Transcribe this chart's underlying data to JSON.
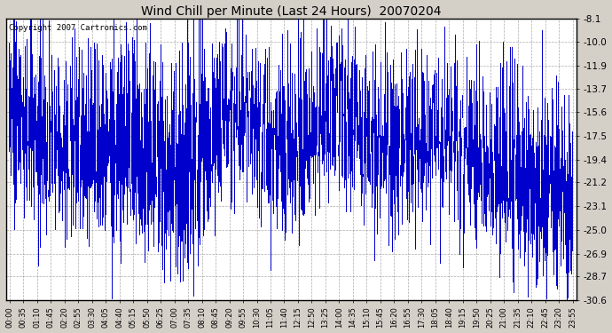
{
  "title": "Wind Chill per Minute (Last 24 Hours)  20070204",
  "copyright_text": "Copyright 2007 Cartronics.com",
  "bar_color": "#0000CC",
  "background_color": "#D4D0C8",
  "plot_bg_color": "#FFFFFF",
  "grid_color": "#888888",
  "ylim": [
    -30.6,
    -8.1
  ],
  "yticks": [
    -8.1,
    -10.0,
    -11.9,
    -13.7,
    -15.6,
    -17.5,
    -19.4,
    -21.2,
    -23.1,
    -25.0,
    -26.9,
    -28.7,
    -30.6
  ],
  "xtick_labels": [
    "00:00",
    "00:35",
    "01:10",
    "01:45",
    "02:20",
    "02:55",
    "03:30",
    "04:05",
    "04:40",
    "05:15",
    "05:50",
    "06:25",
    "07:00",
    "07:35",
    "08:10",
    "08:45",
    "09:20",
    "09:55",
    "10:30",
    "11:05",
    "11:40",
    "12:15",
    "12:50",
    "13:25",
    "14:00",
    "14:35",
    "15:10",
    "15:45",
    "16:20",
    "16:55",
    "17:30",
    "18:05",
    "18:40",
    "19:15",
    "19:50",
    "20:25",
    "21:00",
    "21:35",
    "22:10",
    "22:45",
    "23:20",
    "23:55"
  ],
  "n_minutes": 1440,
  "seed": 42
}
